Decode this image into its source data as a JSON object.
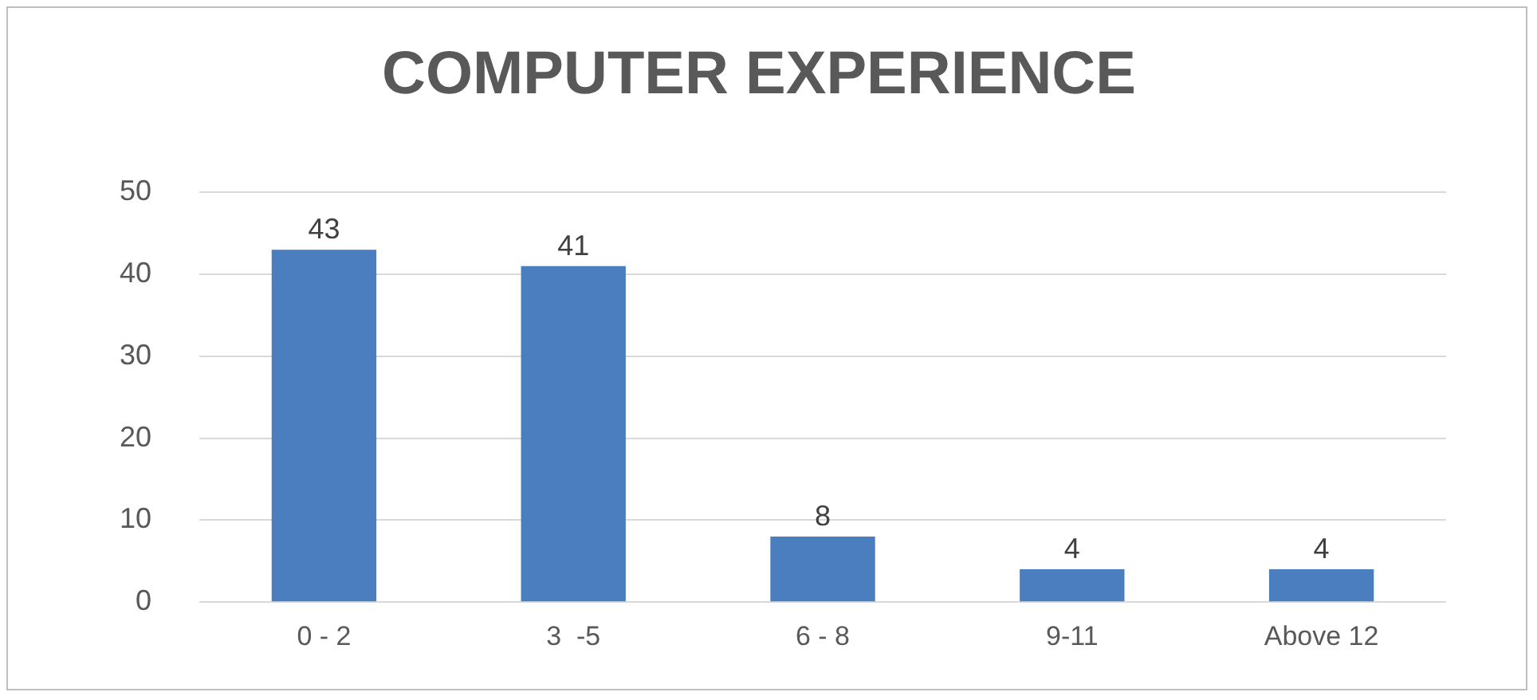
{
  "chart_data": {
    "type": "bar",
    "title": "COMPUTER EXPERIENCE",
    "categories": [
      "0 - 2",
      "3  -5",
      "6 - 8",
      "9-11",
      "Above 12"
    ],
    "values": [
      43,
      41,
      8,
      4,
      4
    ],
    "color": "#4a7ebf",
    "ylim": [
      0,
      50
    ],
    "yticks": [
      0,
      10,
      20,
      30,
      40,
      50
    ],
    "grid": "y",
    "data_labels": true,
    "legend": false
  }
}
